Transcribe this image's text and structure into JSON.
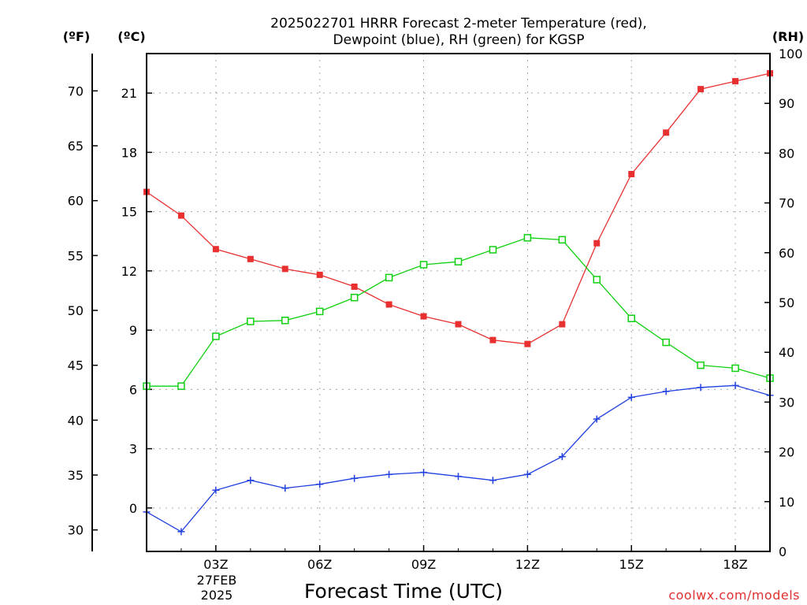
{
  "chart_data": {
    "type": "line",
    "title_line1": "2025022701 HRRR Forecast 2-meter Temperature (red),",
    "title_line2": "Dewpoint (blue), RH (green) for KGSP",
    "xlabel": "Forecast Time (UTC)",
    "x_tick_labels": [
      "03Z",
      "06Z",
      "09Z",
      "12Z",
      "15Z",
      "18Z"
    ],
    "date_lines": [
      "27FEB",
      "2025"
    ],
    "units": {
      "fahrenheit": "(ºF)",
      "celsius": "(ºC)",
      "rh": "(RH)"
    },
    "axes": {
      "celsius": {
        "range": [
          -2.2,
          23.0
        ],
        "ticks": [
          0,
          3,
          6,
          9,
          12,
          15,
          18,
          21
        ]
      },
      "fahrenheit": {
        "ticks": [
          30,
          35,
          40,
          45,
          50,
          55,
          60,
          65,
          70
        ]
      },
      "rh": {
        "range": [
          0,
          100
        ],
        "ticks": [
          0,
          10,
          20,
          30,
          40,
          50,
          60,
          70,
          80,
          90,
          100
        ]
      }
    },
    "x": [
      "01Z",
      "02Z",
      "03Z",
      "04Z",
      "05Z",
      "06Z",
      "07Z",
      "08Z",
      "09Z",
      "10Z",
      "11Z",
      "12Z",
      "13Z",
      "14Z",
      "15Z",
      "16Z",
      "17Z",
      "18Z",
      "19Z"
    ],
    "series": [
      {
        "name": "Temperature",
        "color": "#e83030",
        "axis": "celsius",
        "marker": "filled-square",
        "values": [
          16.0,
          14.8,
          13.1,
          12.6,
          12.1,
          11.8,
          11.2,
          10.3,
          9.7,
          9.3,
          8.5,
          8.3,
          9.3,
          13.4,
          16.9,
          19.0,
          21.2,
          21.6,
          22.0
        ]
      },
      {
        "name": "Dewpoint",
        "color": "#2040e0",
        "axis": "celsius",
        "marker": "plus",
        "values": [
          -0.2,
          -1.2,
          0.9,
          1.4,
          1.0,
          1.2,
          1.5,
          1.7,
          1.8,
          1.6,
          1.4,
          1.7,
          2.6,
          4.5,
          5.6,
          5.9,
          6.1,
          6.2,
          5.7
        ]
      },
      {
        "name": "RH",
        "color": "#10d010",
        "axis": "rh",
        "marker": "open-square",
        "values": [
          33.2,
          33.2,
          43.2,
          46.2,
          46.4,
          48.2,
          51.0,
          55.0,
          57.6,
          58.2,
          60.6,
          63.0,
          62.6,
          54.6,
          46.8,
          42.0,
          37.4,
          36.8,
          34.8
        ]
      }
    ],
    "grid": true,
    "credit": "coolwx.com/models"
  }
}
